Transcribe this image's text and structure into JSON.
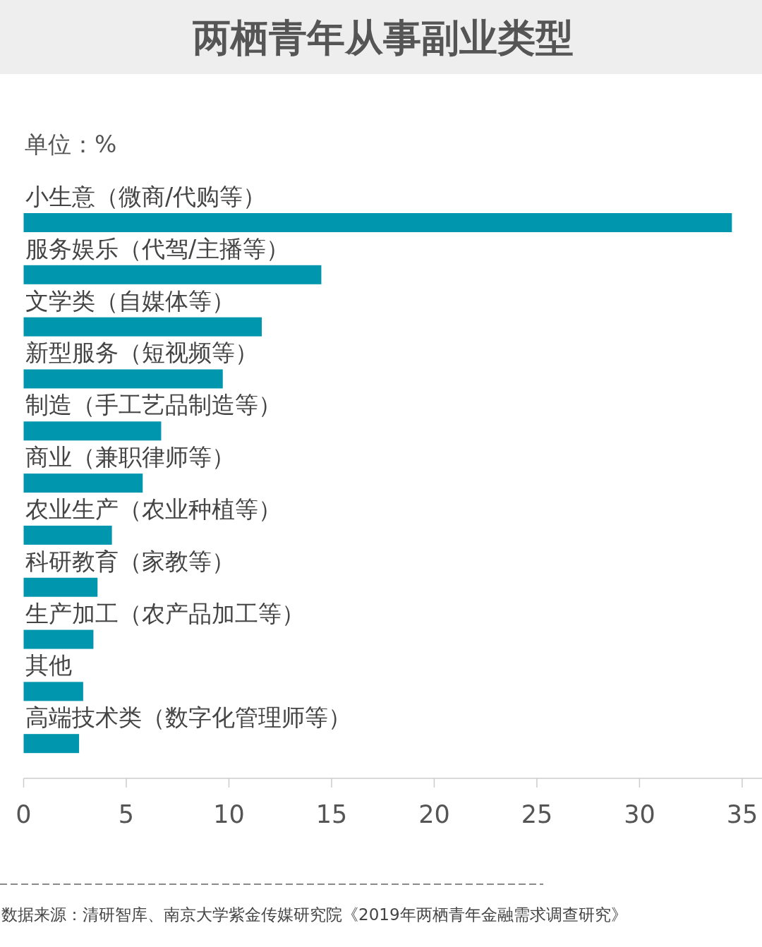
{
  "chart_data": {
    "type": "bar",
    "orientation": "horizontal",
    "title": "两栖青年从事副业类型",
    "subtitle": "单位：%",
    "categories": [
      "小生意（微商/代购等）",
      "服务娱乐（代驾/主播等）",
      "文学类（自媒体等）",
      "新型服务（短视频等）",
      "制造（手工艺品制造等）",
      "商业（兼职律师等）",
      "农业生产（农业种植等）",
      "科研教育（家教等）",
      "生产加工（农产品加工等）",
      "其他",
      "高端技术类（数字化管理师等）"
    ],
    "values": [
      34.5,
      14.5,
      11.6,
      9.7,
      6.7,
      5.8,
      4.3,
      3.6,
      3.4,
      2.9,
      2.7
    ],
    "color": "#0097ae",
    "xlim": [
      0,
      36
    ],
    "xticks": [
      0,
      5,
      10,
      15,
      20,
      25,
      30,
      35
    ],
    "annotations": [
      "数据来源：清研智库、南京大学紫金传媒研究院《2019年两栖青年金融需求调查研究》"
    ]
  }
}
